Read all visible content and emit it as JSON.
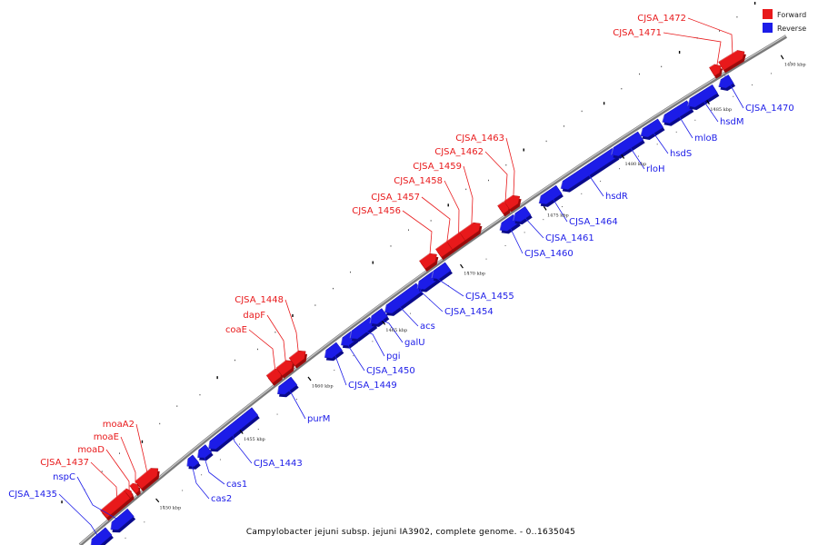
{
  "legend": {
    "forward_label": "Forward",
    "reverse_label": "Reverse",
    "forward_color": "#e8191b",
    "reverse_color": "#1c1ce8"
  },
  "caption": "Campylobacter jejuni subsp. jejuni IA3902, complete genome. - 0..1635045",
  "scale_unit": "kbp",
  "ticks": [
    "1450 kbp",
    "1455 kbp",
    "1460 kbp",
    "1465 kbp",
    "1470 kbp",
    "1475 kbp",
    "1480 kbp",
    "1485 kbp",
    "1490 kbp"
  ],
  "genes": [
    {
      "name": "CJSA_1435",
      "strand": "reverse"
    },
    {
      "name": "nspC",
      "strand": "reverse"
    },
    {
      "name": "CJSA_1437",
      "strand": "forward"
    },
    {
      "name": "moaD",
      "strand": "forward"
    },
    {
      "name": "moaE",
      "strand": "forward"
    },
    {
      "name": "moaA2",
      "strand": "forward"
    },
    {
      "name": "cas2",
      "strand": "reverse"
    },
    {
      "name": "cas1",
      "strand": "reverse"
    },
    {
      "name": "CJSA_1443",
      "strand": "reverse"
    },
    {
      "name": "purM",
      "strand": "reverse"
    },
    {
      "name": "coaE",
      "strand": "forward"
    },
    {
      "name": "dapF",
      "strand": "forward"
    },
    {
      "name": "CJSA_1448",
      "strand": "forward"
    },
    {
      "name": "CJSA_1449",
      "strand": "reverse"
    },
    {
      "name": "CJSA_1450",
      "strand": "reverse"
    },
    {
      "name": "pgi",
      "strand": "reverse"
    },
    {
      "name": "galU",
      "strand": "reverse"
    },
    {
      "name": "acs",
      "strand": "reverse"
    },
    {
      "name": "CJSA_1454",
      "strand": "reverse"
    },
    {
      "name": "CJSA_1455",
      "strand": "reverse"
    },
    {
      "name": "CJSA_1456",
      "strand": "forward"
    },
    {
      "name": "CJSA_1457",
      "strand": "forward"
    },
    {
      "name": "CJSA_1458",
      "strand": "forward"
    },
    {
      "name": "CJSA_1459",
      "strand": "forward"
    },
    {
      "name": "CJSA_1460",
      "strand": "reverse"
    },
    {
      "name": "CJSA_1461",
      "strand": "reverse"
    },
    {
      "name": "CJSA_1462",
      "strand": "forward"
    },
    {
      "name": "CJSA_1463",
      "strand": "forward"
    },
    {
      "name": "CJSA_1464",
      "strand": "reverse"
    },
    {
      "name": "hsdR",
      "strand": "reverse"
    },
    {
      "name": "rloH",
      "strand": "reverse"
    },
    {
      "name": "hsdS",
      "strand": "reverse"
    },
    {
      "name": "mloB",
      "strand": "reverse"
    },
    {
      "name": "hsdM",
      "strand": "reverse"
    },
    {
      "name": "CJSA_1470",
      "strand": "reverse"
    },
    {
      "name": "CJSA_1471",
      "strand": "forward"
    },
    {
      "name": "CJSA_1472",
      "strand": "forward"
    }
  ]
}
